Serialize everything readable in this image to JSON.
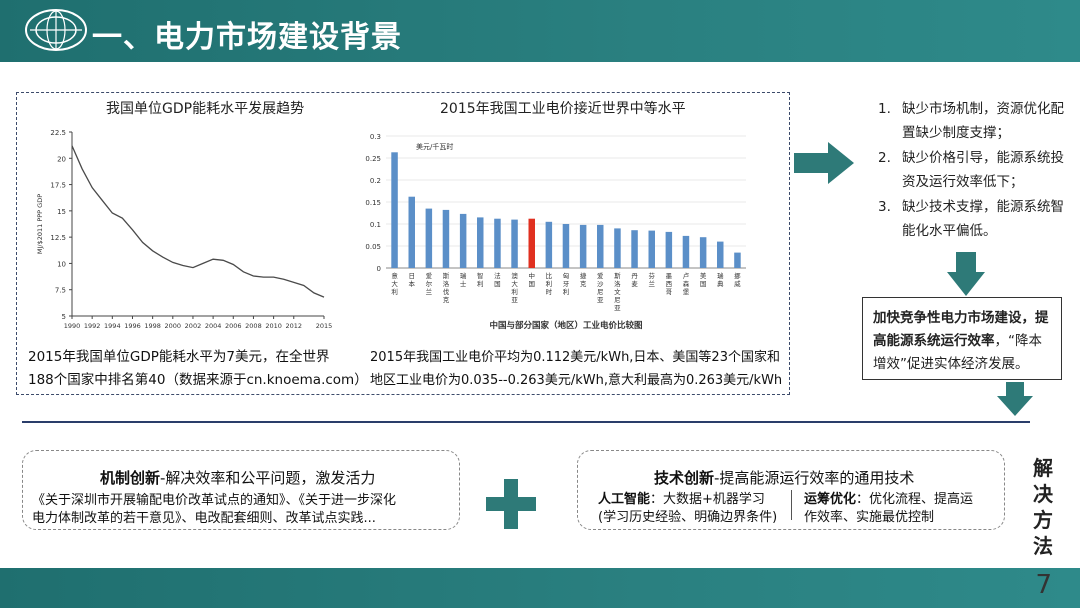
{
  "header": {
    "title": "一、电力市场建设背景"
  },
  "left_chart": {
    "title": "我国单位GDP能耗水平发展趋势",
    "ylabel": "MJ/$2011 PPP GDP",
    "caption_line1": "2015年我国单位GDP能耗水平为7美元，在全世界",
    "caption_line2": "188个国家中排名第40（数据来源于cn.knoema.com）"
  },
  "right_chart": {
    "title": "2015年我国工业电价接近世界中等水平",
    "unit": "美元/千瓦时",
    "subtitle": "中国与部分国家（地区）工业电价比较图",
    "caption_line1": "2015年我国工业电价平均为0.112美元/kWh,日本、美国等23个国家和",
    "caption_line2": "地区工业电价为0.035--0.263美元/kWh,意大利最高为0.263美元/kWh"
  },
  "chart_data": [
    {
      "type": "line",
      "title": "我国单位GDP能耗水平发展趋势",
      "ylabel": "MJ/$2011 PPP GDP",
      "xlabel": "",
      "x": [
        1990,
        1991,
        1992,
        1993,
        1994,
        1995,
        1996,
        1997,
        1998,
        1999,
        2000,
        2001,
        2002,
        2003,
        2004,
        2005,
        2006,
        2007,
        2008,
        2009,
        2010,
        2011,
        2012,
        2013,
        2014,
        2015
      ],
      "values": [
        21.2,
        19.0,
        17.2,
        16.0,
        14.8,
        14.3,
        13.2,
        12.0,
        11.2,
        10.6,
        10.1,
        9.8,
        9.6,
        10.0,
        10.4,
        10.3,
        9.9,
        9.2,
        8.8,
        8.7,
        8.7,
        8.5,
        8.2,
        7.9,
        7.2,
        6.8
      ],
      "xticks": [
        "1990",
        "1992",
        "1994",
        "1996",
        "1998",
        "2000",
        "2002",
        "2004",
        "2006",
        "2008",
        "2010",
        "2012",
        "2015"
      ],
      "yticks": [
        "5",
        "7.5",
        "10",
        "12.5",
        "15",
        "17.5",
        "20",
        "22.5"
      ],
      "ylim": [
        5,
        22.5
      ],
      "grid": false
    },
    {
      "type": "bar",
      "title": "2015年我国工业电价接近世界中等水平",
      "ylabel": "美元/千瓦时",
      "categories": [
        "意大利",
        "日本",
        "爱尔兰",
        "斯洛伐克",
        "瑞士",
        "智利",
        "法国",
        "澳大利亚",
        "中国",
        "比利时",
        "匈牙利",
        "捷克",
        "爱沙尼亚",
        "斯洛文尼亚",
        "丹麦",
        "芬兰",
        "墨西哥",
        "卢森堡",
        "美国",
        "瑞典",
        "挪威"
      ],
      "values": [
        0.263,
        0.162,
        0.135,
        0.132,
        0.123,
        0.115,
        0.112,
        0.11,
        0.112,
        0.105,
        0.1,
        0.098,
        0.098,
        0.09,
        0.086,
        0.085,
        0.082,
        0.073,
        0.07,
        0.06,
        0.035
      ],
      "highlight": "中国",
      "bar_color": "#5b8fc8",
      "highlight_color": "#e03020",
      "yticks": [
        "0",
        "0.05",
        "0.1",
        "0.15",
        "0.2",
        "0.25",
        "0.3"
      ],
      "ylim": [
        0,
        0.3
      ],
      "grid": true
    }
  ],
  "steps": [
    {
      "num": "1.",
      "text": "缺少市场机制，资源优化配置缺少制度支撑；"
    },
    {
      "num": "2.",
      "text": "缺少价格引导，能源系统投资及运行效率低下；"
    },
    {
      "num": "3.",
      "text": "缺少技术支撑，能源系统智能化水平偏低。"
    }
  ],
  "conclusion": {
    "bold": "加快竞争性电力市场建设，提高能源系统运行效率",
    "rest": "，“降本增效”促进实体经济发展。"
  },
  "mechanism": {
    "title_bold": "机制创新",
    "title_rest": "-解决效率和公平问题，激发活力",
    "line1": "《关于深圳市开展输配电价改革试点的通知》、《关于进一步深化",
    "line2": "电力体制改革的若干意见》、电改配套细则、改革试点实践..."
  },
  "tech": {
    "title_bold": "技术创新",
    "title_rest": "-提高能源运行效率的通用技术",
    "ai_bold": "人工智能",
    "ai_rest": "：大数据+机器学习",
    "ai_line2": "(学习历史经验、明确边界条件)",
    "opt_bold": "运筹优化",
    "opt_rest": "：优化流程、提高运",
    "opt_line2": "作效率、实施最优控制"
  },
  "side_label": "解决方法",
  "page_number": "7",
  "colors": {
    "teal": "#2a8080",
    "arrow": "#2e7a78",
    "navy": "#2a3d6a"
  }
}
